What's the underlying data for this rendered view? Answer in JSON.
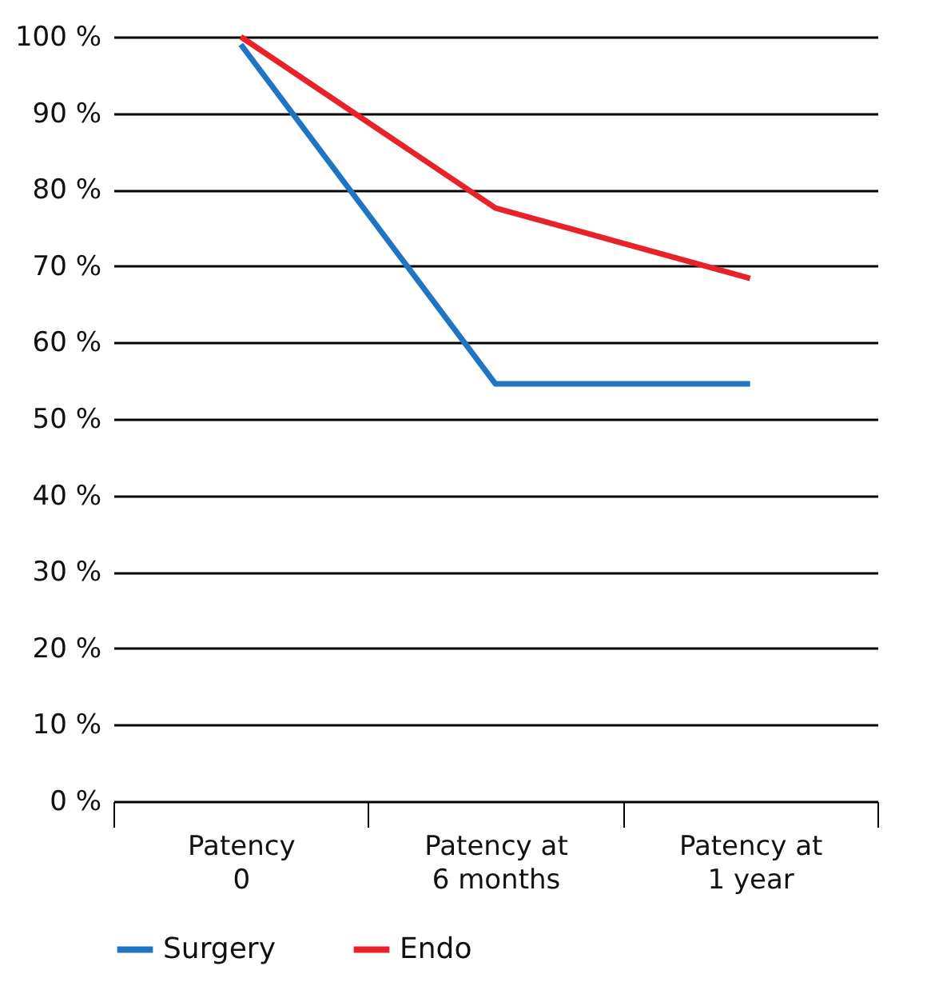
{
  "chart_data": {
    "type": "line",
    "categories": [
      "Patency\n0",
      "Patency at\n6 months",
      "Patency at\n1 year"
    ],
    "series": [
      {
        "name": "Surgery",
        "color": "#1f75c4",
        "values": [
          99,
          54.6,
          54.6
        ]
      },
      {
        "name": "Endo",
        "color": "#e82229",
        "values": [
          100,
          77.6,
          68.4
        ]
      }
    ],
    "ylim": [
      0,
      100
    ],
    "yticks": [
      {
        "value": 0,
        "label": "0 %"
      },
      {
        "value": 10,
        "label": "10 %"
      },
      {
        "value": 20,
        "label": "20 %"
      },
      {
        "value": 30,
        "label": "30 %"
      },
      {
        "value": 40,
        "label": "40 %"
      },
      {
        "value": 50,
        "label": "50 %"
      },
      {
        "value": 60,
        "label": "60 %"
      },
      {
        "value": 70,
        "label": "70 %"
      },
      {
        "value": 80,
        "label": "80 %"
      },
      {
        "value": 90,
        "label": "90 %"
      },
      {
        "value": 100,
        "label": "100 %"
      }
    ],
    "grid": "y",
    "legend": "bottom",
    "marker": "none",
    "line_style": "solid"
  }
}
